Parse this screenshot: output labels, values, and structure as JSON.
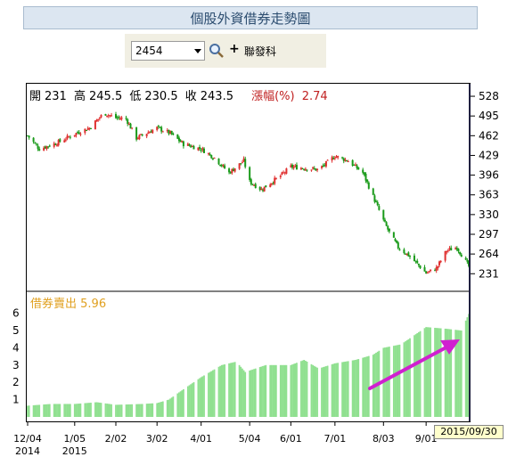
{
  "page": {
    "title": "個股外資借券走勢圖"
  },
  "search": {
    "stock_code": "2454",
    "stock_name": "聯發科",
    "plus_label": "+"
  },
  "ohlc": {
    "open_label": "開",
    "open": "231",
    "high_label": "高",
    "high": "245.5",
    "low_label": "低",
    "low": "230.5",
    "close_label": "收",
    "close": "243.5",
    "change_label": "漲幅(%)",
    "change": "2.74"
  },
  "short_sell": {
    "label": "借券賣出",
    "value": "5.96"
  },
  "selected_date": "2015/09/30",
  "colors": {
    "up": "#e03030",
    "down": "#1a9a1a",
    "volume": "#90e090",
    "arrow": "#d020d0",
    "short_label": "#e0a020"
  },
  "chart_data": [
    {
      "type": "candlestick",
      "ylim": [
        215,
        540
      ],
      "yticks": [
        231,
        264,
        297,
        330,
        363,
        396,
        429,
        462,
        495,
        528
      ],
      "x_dates": [
        "2014-12-04",
        "2015-01-05",
        "2015-02-02",
        "2015-03-02",
        "2015-04-01",
        "2015-05-04",
        "2015-06-01",
        "2015-07-01",
        "2015-08-03",
        "2015-09-01",
        "2015-09-30"
      ],
      "close_trend": [
        [
          "2014-12-04",
          462
        ],
        [
          "2014-12-12",
          440
        ],
        [
          "2014-12-24",
          450
        ],
        [
          "2015-01-05",
          465
        ],
        [
          "2015-01-15",
          475
        ],
        [
          "2015-01-25",
          500
        ],
        [
          "2015-02-02",
          492
        ],
        [
          "2015-02-09",
          490
        ],
        [
          "2015-02-16",
          458
        ],
        [
          "2015-03-02",
          475
        ],
        [
          "2015-03-11",
          466
        ],
        [
          "2015-03-20",
          448
        ],
        [
          "2015-04-01",
          440
        ],
        [
          "2015-04-10",
          425
        ],
        [
          "2015-04-20",
          400
        ],
        [
          "2015-04-30",
          420
        ],
        [
          "2015-05-04",
          385
        ],
        [
          "2015-05-12",
          372
        ],
        [
          "2015-05-25",
          395
        ],
        [
          "2015-06-01",
          410
        ],
        [
          "2015-06-10",
          408
        ],
        [
          "2015-06-20",
          405
        ],
        [
          "2015-07-01",
          428
        ],
        [
          "2015-07-10",
          420
        ],
        [
          "2015-07-20",
          400
        ],
        [
          "2015-07-27",
          360
        ],
        [
          "2015-08-03",
          320
        ],
        [
          "2015-08-07",
          300
        ],
        [
          "2015-08-13",
          275
        ],
        [
          "2015-08-20",
          262
        ],
        [
          "2015-08-27",
          245
        ],
        [
          "2015-09-01",
          232
        ],
        [
          "2015-09-08",
          240
        ],
        [
          "2015-09-15",
          270
        ],
        [
          "2015-09-22",
          275
        ],
        [
          "2015-09-30",
          243.5
        ]
      ]
    },
    {
      "type": "bar",
      "title": "借券賣出",
      "ylim": [
        0,
        6.6
      ],
      "yticks": [
        1,
        2,
        3,
        4,
        5,
        6
      ],
      "x_dates": [
        "2014-12-04",
        "2015-01-05",
        "2015-02-02",
        "2015-03-02",
        "2015-04-01",
        "2015-05-04",
        "2015-06-01",
        "2015-07-01",
        "2015-08-03",
        "2015-09-01",
        "2015-09-30"
      ],
      "values_trend": [
        [
          "2014-12-04",
          0.65
        ],
        [
          "2014-12-20",
          0.75
        ],
        [
          "2015-01-05",
          0.75
        ],
        [
          "2015-01-20",
          0.85
        ],
        [
          "2015-02-02",
          0.7
        ],
        [
          "2015-02-20",
          0.75
        ],
        [
          "2015-03-02",
          0.8
        ],
        [
          "2015-03-10",
          1.0
        ],
        [
          "2015-03-20",
          1.6
        ],
        [
          "2015-04-01",
          2.3
        ],
        [
          "2015-04-15",
          3.0
        ],
        [
          "2015-04-25",
          3.2
        ],
        [
          "2015-05-01",
          2.6
        ],
        [
          "2015-05-15",
          3.0
        ],
        [
          "2015-06-01",
          3.0
        ],
        [
          "2015-06-10",
          3.3
        ],
        [
          "2015-06-20",
          2.8
        ],
        [
          "2015-07-01",
          3.1
        ],
        [
          "2015-07-15",
          3.3
        ],
        [
          "2015-07-27",
          3.6
        ],
        [
          "2015-08-03",
          4.0
        ],
        [
          "2015-08-15",
          4.2
        ],
        [
          "2015-09-01",
          5.2
        ],
        [
          "2015-09-15",
          5.1
        ],
        [
          "2015-09-25",
          5.0
        ],
        [
          "2015-09-30",
          5.96
        ]
      ]
    }
  ]
}
